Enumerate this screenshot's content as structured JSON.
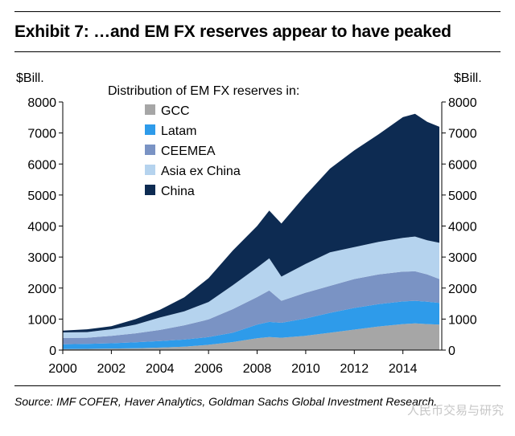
{
  "header": {
    "title": "Exhibit 7: …and EM FX reserves appear to have peaked"
  },
  "footer": {
    "source": "Source: IMF COFER, Haver Analytics, Goldman Sachs Global Investment Research."
  },
  "watermark": {
    "text": "人民币交易与研究"
  },
  "chart_data": {
    "type": "area",
    "stacked": true,
    "title": "",
    "ylabel_left": "$Bill.",
    "ylabel_right": "$Bill.",
    "legend_title": "Distribution of EM FX reserves in:",
    "legend_position": "top-left",
    "xlim": [
      2000,
      2015.6
    ],
    "ylim": [
      0,
      8000
    ],
    "xticks": [
      "2000",
      "2002",
      "2004",
      "2006",
      "2008",
      "2010",
      "2012",
      "2014"
    ],
    "yticks": [
      "0",
      "1000",
      "2000",
      "3000",
      "4000",
      "5000",
      "6000",
      "7000",
      "8000"
    ],
    "grid": false,
    "x": [
      2000,
      2001,
      2002,
      2003,
      2004,
      2005,
      2006,
      2007,
      2008,
      2008.5,
      2009,
      2010,
      2011,
      2012,
      2013,
      2014,
      2014.5,
      2015,
      2015.5
    ],
    "series": [
      {
        "name": "GCC",
        "color": "#a6a6a6",
        "values": [
          30,
          40,
          50,
          60,
          80,
          110,
          170,
          260,
          380,
          420,
          400,
          460,
          560,
          660,
          760,
          840,
          860,
          840,
          820
        ]
      },
      {
        "name": "Latam",
        "color": "#2e9bea",
        "values": [
          160,
          160,
          170,
          190,
          210,
          230,
          250,
          300,
          440,
          490,
          480,
          560,
          640,
          700,
          720,
          730,
          730,
          720,
          700
        ]
      },
      {
        "name": "CEEMEA",
        "color": "#7a93c4",
        "values": [
          200,
          200,
          240,
          290,
          360,
          460,
          570,
          760,
          890,
          1010,
          710,
          830,
          870,
          930,
          960,
          960,
          950,
          880,
          770
        ]
      },
      {
        "name": "Asia ex China",
        "color": "#b5d3ee",
        "values": [
          180,
          180,
          210,
          280,
          400,
          450,
          560,
          770,
          950,
          1040,
          780,
          930,
          1080,
          1030,
          1050,
          1090,
          1120,
          1100,
          1170
        ]
      },
      {
        "name": "China",
        "color": "#0d2b52",
        "values": [
          60,
          90,
          100,
          180,
          250,
          450,
          770,
          1120,
          1340,
          1540,
          1710,
          2220,
          2700,
          3120,
          3470,
          3890,
          3960,
          3820,
          3740
        ]
      }
    ]
  }
}
